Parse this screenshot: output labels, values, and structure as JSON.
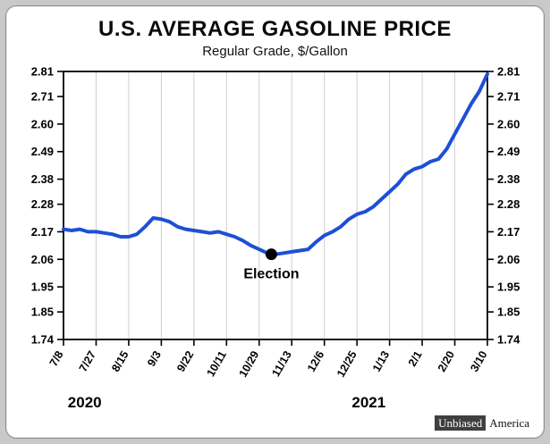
{
  "header": {
    "title": "U.S. AVERAGE GASOLINE PRICE",
    "subtitle": "Regular Grade, $/Gallon"
  },
  "chart_data": {
    "type": "line",
    "title": "U.S. AVERAGE GASOLINE PRICE",
    "subtitle": "Regular Grade, $/Gallon",
    "ylabel": "$/Gallon",
    "xlabel": "",
    "ylim": [
      1.74,
      2.81
    ],
    "y_ticks": [
      2.81,
      2.71,
      2.6,
      2.49,
      2.38,
      2.28,
      2.17,
      2.06,
      1.95,
      1.85,
      1.74
    ],
    "y_ticks_both_sides": true,
    "x_tick_labels": [
      "7/8",
      "7/27",
      "8/15",
      "9/3",
      "9/22",
      "10/11",
      "10/29",
      "11/13",
      "12/6",
      "12/25",
      "1/13",
      "2/1",
      "2/20",
      "3/10"
    ],
    "year_labels": [
      "2020",
      "2021"
    ],
    "grid": "vertical",
    "line_color": "#1e4fd6",
    "annotation": {
      "label": "Election",
      "x_index": 25.5,
      "value": 2.08,
      "marker": "black-dot"
    },
    "series": [
      {
        "name": "U.S. average gasoline price ($/gal)",
        "values": [
          2.18,
          2.175,
          2.18,
          2.17,
          2.17,
          2.165,
          2.16,
          2.15,
          2.15,
          2.16,
          2.19,
          2.225,
          2.22,
          2.21,
          2.19,
          2.18,
          2.175,
          2.17,
          2.165,
          2.17,
          2.16,
          2.15,
          2.135,
          2.115,
          2.1,
          2.085,
          2.08,
          2.085,
          2.09,
          2.095,
          2.1,
          2.13,
          2.155,
          2.17,
          2.19,
          2.22,
          2.24,
          2.25,
          2.27,
          2.3,
          2.33,
          2.36,
          2.4,
          2.42,
          2.43,
          2.45,
          2.46,
          2.5,
          2.56,
          2.62,
          2.68,
          2.73,
          2.8
        ]
      }
    ]
  },
  "watermark": {
    "boxed": "Unbiased",
    "rest": "America"
  }
}
